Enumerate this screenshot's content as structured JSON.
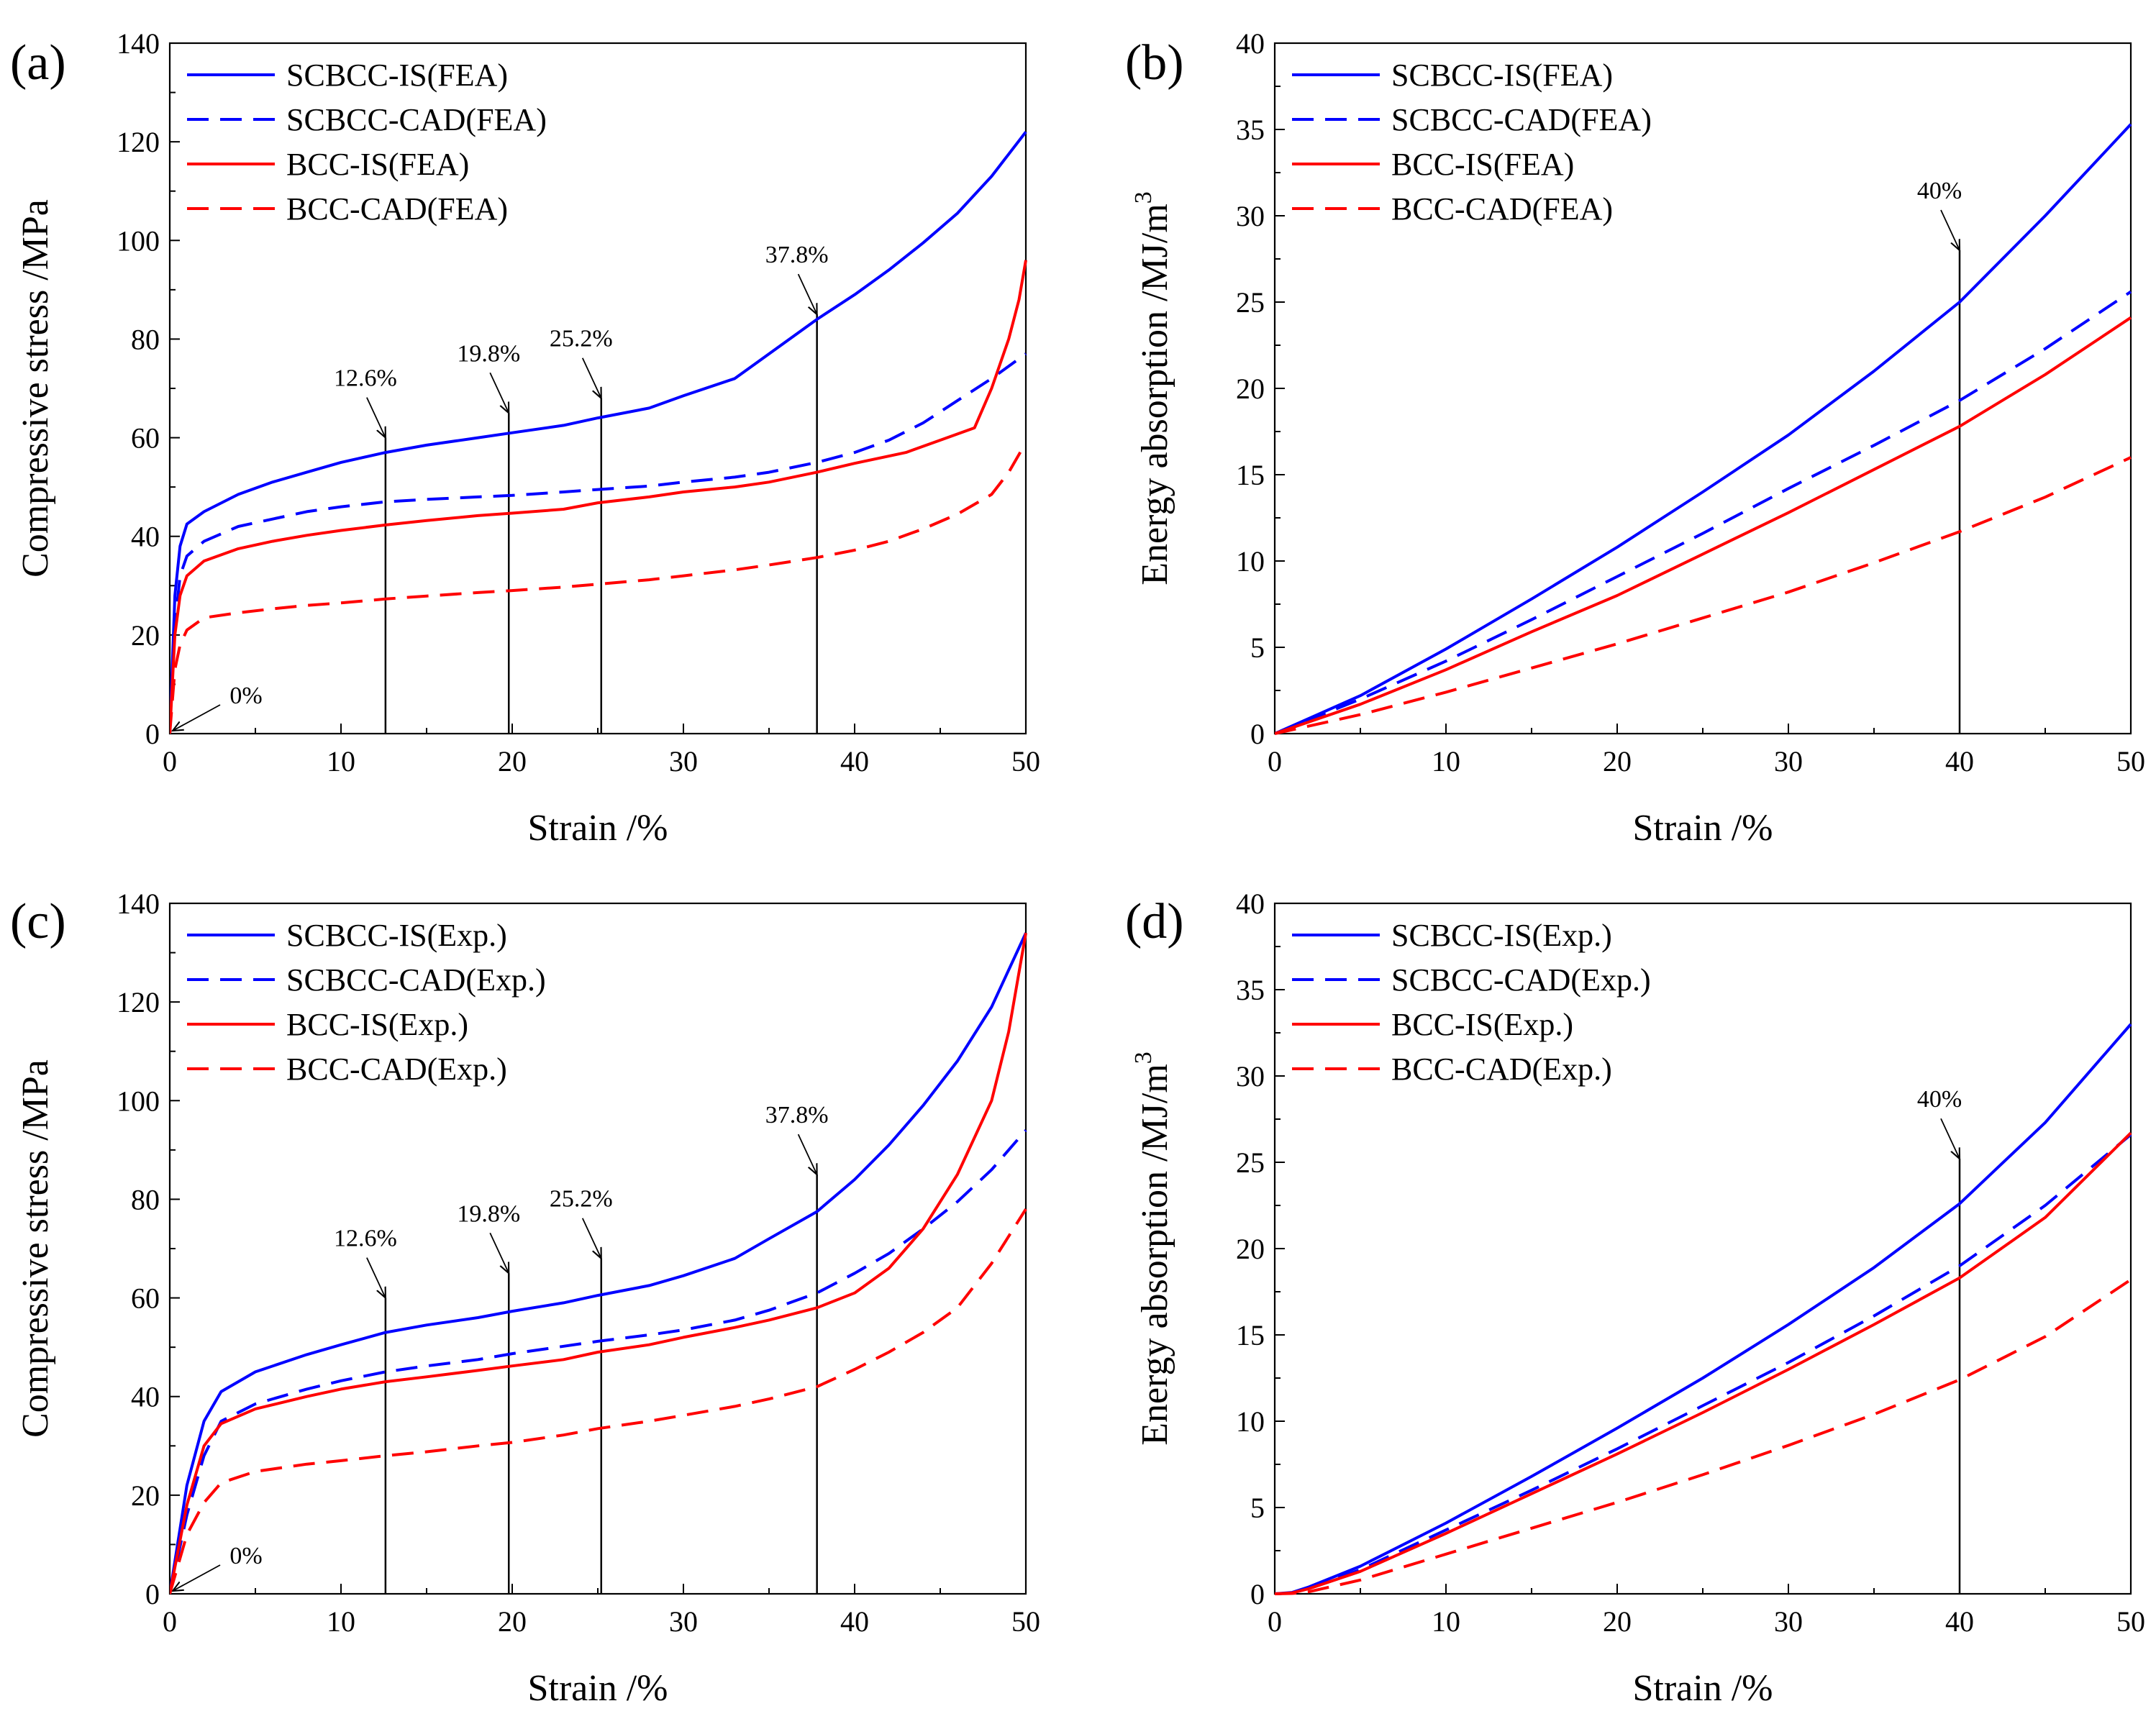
{
  "chart_data": [
    {
      "panel": "(a)",
      "type": "line",
      "xlabel": "Strain /%",
      "ylabel": "Compressive stress /MPa",
      "xlim": [
        0,
        50
      ],
      "ylim": [
        0,
        140
      ],
      "xticks": [
        0,
        10,
        20,
        30,
        40,
        50
      ],
      "yticks": [
        0,
        20,
        40,
        60,
        80,
        100,
        120,
        140
      ],
      "legend": "top-left",
      "series": [
        {
          "name": "SCBCC-IS(FEA)",
          "color": "#0000ff",
          "dash": "solid",
          "x": [
            0,
            0.3,
            0.6,
            1,
            2,
            4,
            6,
            8,
            10,
            12.6,
            15,
            18,
            20,
            23,
            25,
            28,
            30,
            33,
            35,
            37.8,
            40,
            42,
            44,
            46,
            48,
            50
          ],
          "y": [
            0,
            28,
            38,
            42.5,
            45,
            48.5,
            51,
            53,
            55,
            57,
            58.5,
            60,
            61,
            62.5,
            64,
            66,
            68.5,
            72,
            77,
            84,
            89,
            94,
            99.5,
            105.5,
            113,
            122
          ]
        },
        {
          "name": "SCBCC-CAD(FEA)",
          "color": "#0000ff",
          "dash": "dashed",
          "x": [
            0,
            0.3,
            0.6,
            1,
            2,
            4,
            6,
            8,
            10,
            12.6,
            15,
            18,
            20,
            23,
            25,
            28,
            30,
            33,
            35,
            37.8,
            40,
            42,
            44,
            46,
            48,
            50
          ],
          "y": [
            0,
            22,
            32,
            36,
            39,
            42,
            43.5,
            45,
            46,
            47,
            47.5,
            48,
            48.3,
            49,
            49.5,
            50.2,
            51,
            52,
            53,
            55,
            57,
            59.5,
            63,
            67.5,
            72,
            77
          ]
        },
        {
          "name": "BCC-IS(FEA)",
          "color": "#ff0000",
          "dash": "solid",
          "x": [
            0,
            0.3,
            0.6,
            1,
            2,
            4,
            6,
            8,
            10,
            12.6,
            15,
            18,
            20,
            23,
            25,
            28,
            30,
            33,
            35,
            37.8,
            40,
            43,
            45,
            47,
            48,
            49,
            49.6,
            50
          ],
          "y": [
            0,
            20,
            28,
            32,
            35,
            37.5,
            39,
            40.2,
            41.2,
            42.3,
            43.2,
            44.2,
            44.7,
            45.5,
            46.8,
            48,
            49,
            50,
            51,
            53,
            54.8,
            57,
            59.5,
            62,
            70,
            80,
            88,
            96
          ]
        },
        {
          "name": "BCC-CAD(FEA)",
          "color": "#ff0000",
          "dash": "dashed",
          "x": [
            0,
            0.3,
            0.6,
            1,
            2,
            4,
            6,
            8,
            10,
            12.6,
            15,
            18,
            20,
            23,
            25,
            28,
            30,
            33,
            35,
            37.8,
            40,
            42,
            44,
            46,
            48,
            49,
            50
          ],
          "y": [
            0,
            13,
            18,
            21,
            23.5,
            24.5,
            25.3,
            26,
            26.5,
            27.3,
            27.9,
            28.6,
            29,
            29.7,
            30.3,
            31.2,
            32,
            33.2,
            34.2,
            35.7,
            37.2,
            39,
            41.5,
            44.5,
            48.5,
            53,
            59
          ]
        }
      ],
      "annotations": [
        {
          "label": "0%",
          "x": 0,
          "y": 0,
          "line": false
        },
        {
          "label": "12.6%",
          "x": 12.6,
          "y": 60,
          "line": true
        },
        {
          "label": "19.8%",
          "x": 19.8,
          "y": 65,
          "line": true
        },
        {
          "label": "25.2%",
          "x": 25.2,
          "y": 68,
          "line": true
        },
        {
          "label": "37.8%",
          "x": 37.8,
          "y": 85,
          "line": true
        }
      ]
    },
    {
      "panel": "(b)",
      "type": "line",
      "xlabel": "Strain /%",
      "ylabel": "Energy absorption /MJ/m",
      "ylabel_sup": "3",
      "xlim": [
        0,
        50
      ],
      "ylim": [
        0,
        40
      ],
      "xticks": [
        0,
        10,
        20,
        30,
        40,
        50
      ],
      "yticks": [
        0,
        5,
        10,
        15,
        20,
        25,
        30,
        35,
        40
      ],
      "legend": "top-left",
      "series": [
        {
          "name": "SCBCC-IS(FEA)",
          "color": "#0000ff",
          "dash": "solid",
          "x": [
            0,
            5,
            10,
            15,
            20,
            25,
            30,
            35,
            40,
            45,
            50
          ],
          "y": [
            0,
            2.2,
            4.9,
            7.8,
            10.8,
            14,
            17.3,
            21,
            25,
            30,
            35.3
          ]
        },
        {
          "name": "SCBCC-CAD(FEA)",
          "color": "#0000ff",
          "dash": "dashed",
          "x": [
            0,
            5,
            10,
            15,
            20,
            25,
            30,
            35,
            40,
            45,
            50
          ],
          "y": [
            0,
            2,
            4.2,
            6.6,
            9.1,
            11.6,
            14.2,
            16.7,
            19.3,
            22.3,
            25.6
          ]
        },
        {
          "name": "BCC-IS(FEA)",
          "color": "#ff0000",
          "dash": "solid",
          "x": [
            0,
            5,
            10,
            15,
            20,
            25,
            30,
            35,
            40,
            45,
            50
          ],
          "y": [
            0,
            1.7,
            3.7,
            5.9,
            8,
            10.4,
            12.8,
            15.3,
            17.8,
            20.8,
            24.1
          ]
        },
        {
          "name": "BCC-CAD(FEA)",
          "color": "#ff0000",
          "dash": "dashed",
          "x": [
            0,
            5,
            10,
            15,
            20,
            25,
            30,
            35,
            40,
            45,
            50
          ],
          "y": [
            0,
            1.1,
            2.4,
            3.8,
            5.2,
            6.7,
            8.2,
            9.9,
            11.7,
            13.7,
            16
          ]
        }
      ],
      "annotations": [
        {
          "label": "40%",
          "x": 40,
          "y": 28,
          "line": true
        }
      ]
    },
    {
      "panel": "(c)",
      "type": "line",
      "xlabel": "Strain /%",
      "ylabel": "Compressive stress /MPa",
      "xlim": [
        0,
        50
      ],
      "ylim": [
        0,
        140
      ],
      "xticks": [
        0,
        10,
        20,
        30,
        40,
        50
      ],
      "yticks": [
        0,
        20,
        40,
        60,
        80,
        100,
        120,
        140
      ],
      "legend": "top-left",
      "series": [
        {
          "name": "SCBCC-IS(Exp.)",
          "color": "#0000ff",
          "dash": "solid",
          "x": [
            0,
            1,
            2,
            3,
            5,
            8,
            10,
            12.6,
            15,
            18,
            20,
            23,
            25,
            28,
            30,
            33,
            35,
            37.8,
            40,
            42,
            44,
            46,
            48,
            50
          ],
          "y": [
            0,
            22,
            35,
            41,
            45,
            48.5,
            50.5,
            53,
            54.5,
            56,
            57.3,
            59,
            60.5,
            62.5,
            64.5,
            68,
            72,
            77.5,
            84,
            91,
            99,
            108,
            119,
            134
          ]
        },
        {
          "name": "SCBCC-CAD(Exp.)",
          "color": "#0000ff",
          "dash": "dashed",
          "x": [
            0,
            1,
            2,
            3,
            5,
            8,
            10,
            12.6,
            15,
            18,
            20,
            23,
            25,
            28,
            30,
            33,
            35,
            37.8,
            40,
            42,
            44,
            46,
            48,
            50
          ],
          "y": [
            0,
            16,
            28,
            35,
            38.5,
            41.5,
            43.2,
            45,
            46.2,
            47.5,
            48.7,
            50.2,
            51.2,
            52.5,
            53.5,
            55.5,
            57.5,
            61,
            65,
            69,
            74,
            79.5,
            86,
            94
          ]
        },
        {
          "name": "BCC-IS(Exp.)",
          "color": "#ff0000",
          "dash": "solid",
          "x": [
            0,
            1,
            2,
            3,
            5,
            8,
            10,
            12.6,
            15,
            18,
            20,
            23,
            25,
            28,
            30,
            33,
            35,
            37.8,
            40,
            42,
            44,
            46,
            48,
            49,
            50
          ],
          "y": [
            0,
            18,
            30,
            34.5,
            37.5,
            40,
            41.5,
            43,
            44,
            45.3,
            46.2,
            47.5,
            49,
            50.5,
            52,
            54,
            55.5,
            58,
            61,
            66,
            74,
            85,
            100,
            114,
            134
          ]
        },
        {
          "name": "BCC-CAD(Exp.)",
          "color": "#ff0000",
          "dash": "dashed",
          "x": [
            0,
            1,
            2,
            3,
            5,
            8,
            10,
            12.6,
            15,
            18,
            20,
            23,
            25,
            28,
            30,
            33,
            35,
            37.8,
            40,
            42,
            44,
            46,
            48,
            50
          ],
          "y": [
            0,
            12,
            18.5,
            22.5,
            24.8,
            26.3,
            27,
            28,
            28.8,
            30,
            30.7,
            32.2,
            33.5,
            35,
            36.2,
            38,
            39.5,
            42,
            45.5,
            49,
            53,
            58,
            67,
            78
          ]
        }
      ],
      "annotations": [
        {
          "label": "0%",
          "x": 0,
          "y": 0,
          "line": false
        },
        {
          "label": "12.6%",
          "x": 12.6,
          "y": 60,
          "line": true
        },
        {
          "label": "19.8%",
          "x": 19.8,
          "y": 65,
          "line": true
        },
        {
          "label": "25.2%",
          "x": 25.2,
          "y": 68,
          "line": true
        },
        {
          "label": "37.8%",
          "x": 37.8,
          "y": 85,
          "line": true
        }
      ]
    },
    {
      "panel": "(d)",
      "type": "line",
      "xlabel": "Strain /%",
      "ylabel": "Energy absorption /MJ/m",
      "ylabel_sup": "3",
      "xlim": [
        0,
        50
      ],
      "ylim": [
        0,
        40
      ],
      "xticks": [
        0,
        10,
        20,
        30,
        40,
        50
      ],
      "yticks": [
        0,
        5,
        10,
        15,
        20,
        25,
        30,
        35,
        40
      ],
      "legend": "top-left",
      "series": [
        {
          "name": "SCBCC-IS(Exp.)",
          "color": "#0000ff",
          "dash": "solid",
          "x": [
            0,
            1,
            2,
            5,
            10,
            15,
            20,
            25,
            30,
            35,
            40,
            45,
            50
          ],
          "y": [
            0,
            0.08,
            0.4,
            1.6,
            4.1,
            6.8,
            9.6,
            12.5,
            15.6,
            18.9,
            22.6,
            27.3,
            33
          ]
        },
        {
          "name": "SCBCC-CAD(Exp.)",
          "color": "#0000ff",
          "dash": "dashed",
          "x": [
            0,
            1,
            2,
            5,
            10,
            15,
            20,
            25,
            30,
            35,
            40,
            45,
            50
          ],
          "y": [
            0,
            0.05,
            0.3,
            1.4,
            3.7,
            6,
            8.4,
            10.9,
            13.4,
            16.1,
            19,
            22.5,
            26.6
          ]
        },
        {
          "name": "BCC-IS(Exp.)",
          "color": "#ff0000",
          "dash": "solid",
          "x": [
            0,
            1,
            2,
            5,
            10,
            15,
            20,
            25,
            30,
            35,
            40,
            45,
            50
          ],
          "y": [
            0,
            0.05,
            0.3,
            1.3,
            3.5,
            5.8,
            8.1,
            10.5,
            13,
            15.6,
            18.3,
            21.8,
            26.7
          ]
        },
        {
          "name": "BCC-CAD(Exp.)",
          "color": "#ff0000",
          "dash": "dashed",
          "x": [
            0,
            1,
            2,
            5,
            10,
            15,
            20,
            25,
            30,
            35,
            40,
            45,
            50
          ],
          "y": [
            0,
            0.02,
            0.12,
            0.8,
            2.3,
            3.8,
            5.3,
            6.9,
            8.6,
            10.4,
            12.4,
            14.9,
            18.2
          ]
        }
      ],
      "annotations": [
        {
          "label": "40%",
          "x": 40,
          "y": 25.2,
          "line": true
        }
      ]
    }
  ]
}
